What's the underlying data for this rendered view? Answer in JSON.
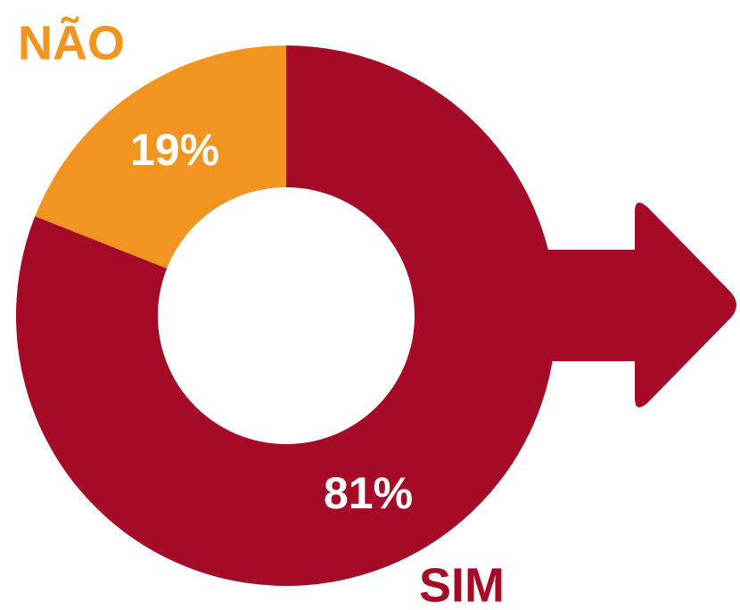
{
  "chart_data": {
    "type": "donut",
    "categories": [
      "SIM",
      "NÃO"
    ],
    "values": [
      81,
      19
    ],
    "value_labels": [
      "81%",
      "19%"
    ],
    "colors": [
      "#a50a27",
      "#f29520"
    ]
  }
}
